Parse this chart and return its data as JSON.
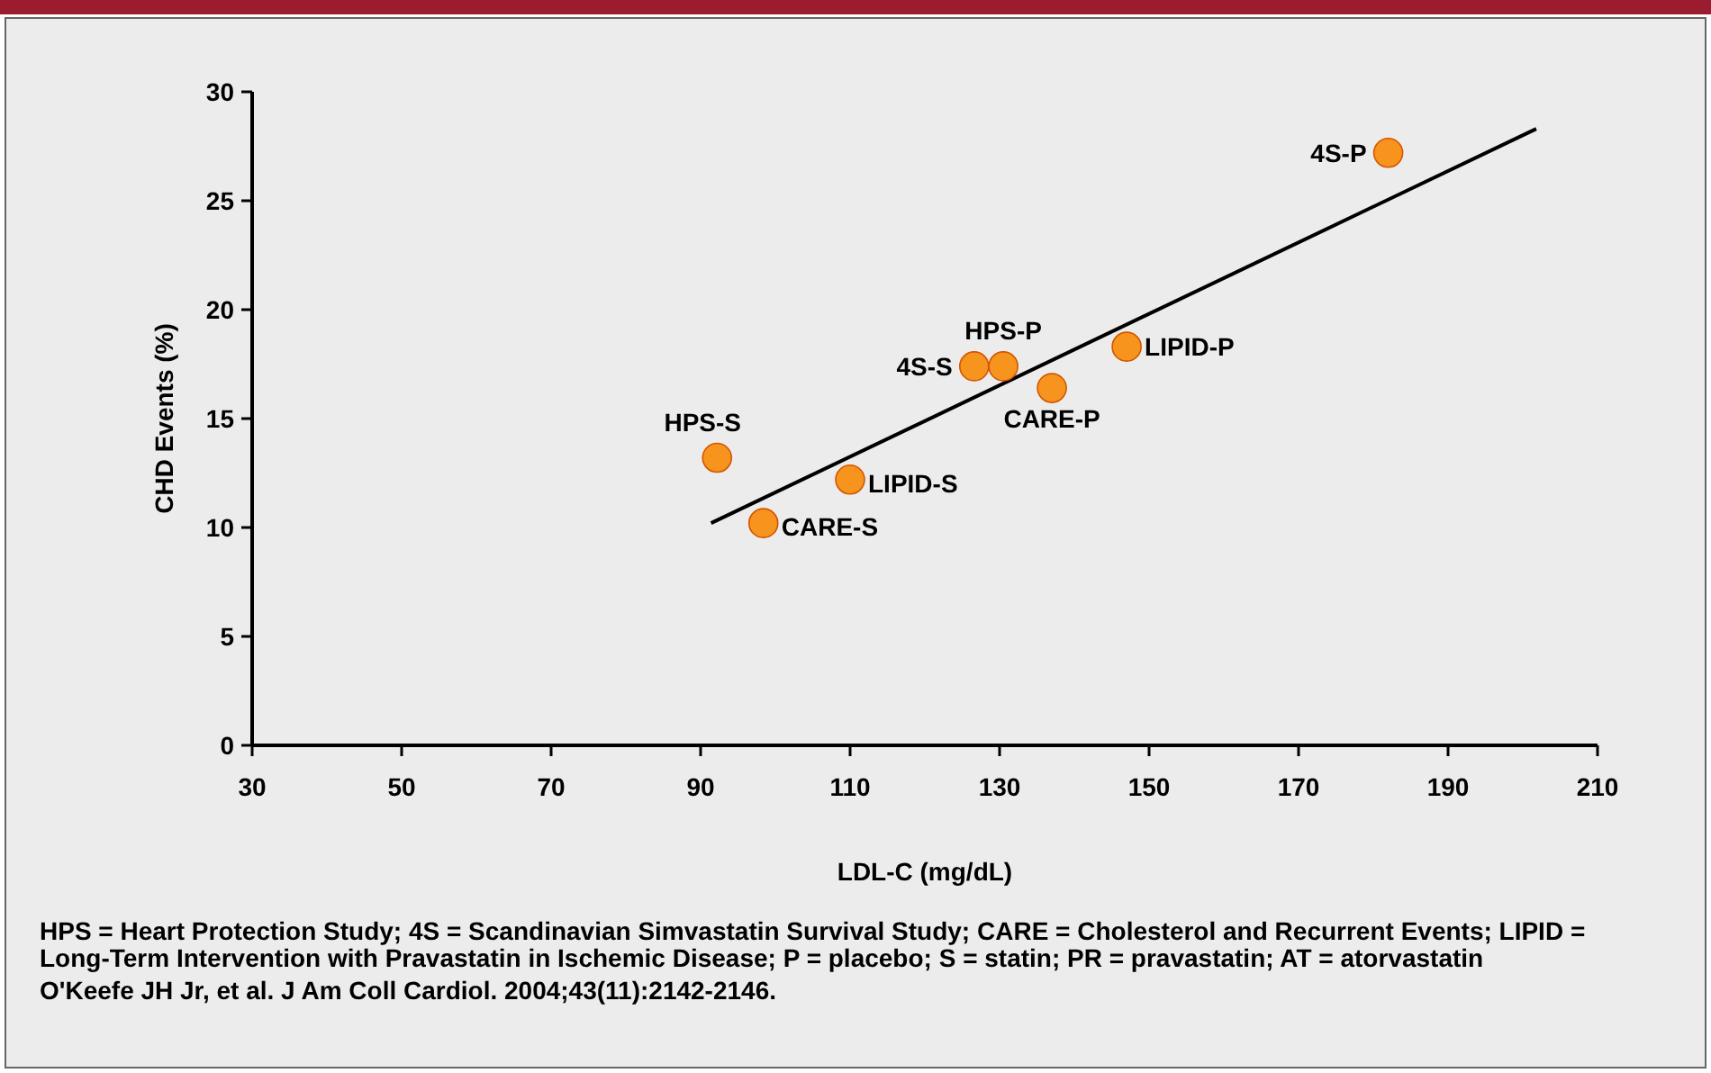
{
  "chart_data": {
    "type": "scatter",
    "xlabel": "LDL-C (mg/dL)",
    "ylabel": "CHD Events (%)",
    "xlim": [
      30,
      210
    ],
    "xticks": [
      30,
      50,
      70,
      90,
      110,
      130,
      150,
      170,
      190,
      210
    ],
    "ylim": [
      0,
      30
    ],
    "yticks": [
      0,
      5,
      10,
      15,
      20,
      25,
      30
    ],
    "grid": false,
    "series": [
      {
        "marker": "circle",
        "color": "#f7941d",
        "x": [
          182,
          130.5,
          126.6,
          137,
          147,
          92.2,
          110,
          98.4
        ],
        "values": [
          27.2,
          17.4,
          17.4,
          16.4,
          18.3,
          13.2,
          12.2,
          10.2
        ]
      },
      {
        "type": "line",
        "marker": "none",
        "color": "#000000",
        "x": [
          91.4,
          201.8
        ],
        "values": [
          10.2,
          28.3
        ]
      }
    ],
    "annotations": [
      {
        "text": "4S-P",
        "x": 182,
        "y": 27.2
      },
      {
        "text": "HPS-P",
        "x": 130.5,
        "y": 17.4
      },
      {
        "text": "4S-S",
        "x": 126.6,
        "y": 17.4
      },
      {
        "text": "CARE-P",
        "x": 137,
        "y": 16.4
      },
      {
        "text": "LIPID-P",
        "x": 147,
        "y": 18.3
      },
      {
        "text": "HPS-S",
        "x": 92.2,
        "y": 13.2
      },
      {
        "text": "LIPID-S",
        "x": 110,
        "y": 12.2
      },
      {
        "text": "CARE-S",
        "x": 98.4,
        "y": 10.2
      },
      "HPS = Heart Protection Study; 4S = Scandinavian Simvastatin Survival Study; CARE = Cholesterol and Recurrent Events; LIPID = Long-Term Intervention with Pravastatin in Ischemic Disease; P = placebo; S = statin; PR = pravastatin; AT = atorvastatin",
      "O'Keefe JH Jr, et al. J Am Coll Cardiol. 2004;43(11):2142-2146."
    ]
  }
}
